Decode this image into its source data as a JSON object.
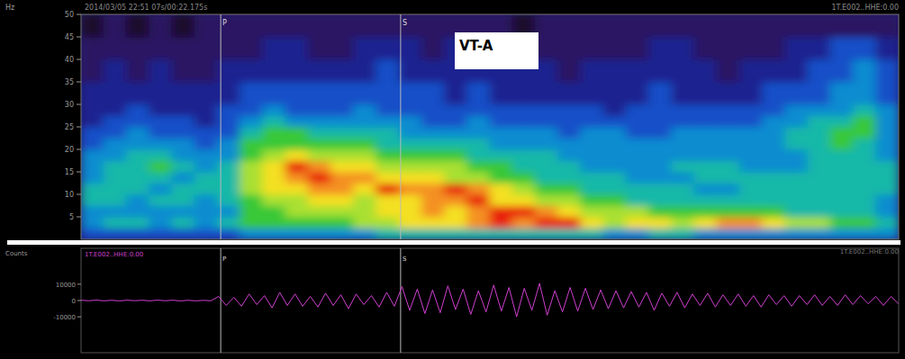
{
  "chart_data": [
    {
      "type": "heatmap",
      "title": "2014/03/05 22:51 07s/00:22.175s",
      "subtitle": "1T.E002..HHE:0.00",
      "y_label": "Hz",
      "annotation": "VT-A",
      "xlim": [
        0,
        36
      ],
      "ylim": [
        0,
        50
      ],
      "yticks": [
        5,
        10,
        15,
        20,
        25,
        30,
        35,
        40,
        45,
        50
      ],
      "tick_labels": "y",
      "y_edges": [
        0,
        2.5,
        5,
        7.5,
        10,
        12.5,
        15,
        17.5,
        20,
        22.5,
        25,
        27.5,
        30,
        35,
        40,
        45,
        50
      ],
      "zlim": [
        0,
        10
      ],
      "markers": [
        {
          "label": "P",
          "x": 6.15
        },
        {
          "label": "S",
          "x": 14.07
        }
      ],
      "cells": [
        [
          3,
          3,
          3,
          3,
          3,
          3,
          3,
          4,
          4,
          4,
          4,
          4,
          4,
          5,
          5,
          5,
          5,
          5,
          5,
          5,
          5,
          5,
          5,
          4,
          4,
          5,
          5,
          4,
          4,
          4,
          4,
          4,
          4,
          4,
          4,
          4
        ],
        [
          4,
          5,
          5,
          4,
          5,
          4,
          5,
          6,
          6,
          6,
          6,
          6,
          7,
          7,
          8,
          8,
          8,
          9,
          10,
          9,
          10,
          10,
          8,
          7,
          8,
          8,
          7,
          8,
          9,
          9,
          8,
          7,
          7,
          6,
          6,
          5
        ],
        [
          4,
          4,
          4,
          4,
          4,
          4,
          4,
          6,
          6,
          7,
          7,
          7,
          7,
          8,
          8,
          9,
          8,
          9,
          10,
          10,
          9,
          8,
          7,
          7,
          7,
          6,
          6,
          6,
          6,
          6,
          6,
          5,
          5,
          5,
          5,
          4
        ],
        [
          5,
          5,
          4,
          5,
          5,
          4,
          5,
          6,
          7,
          7,
          8,
          8,
          7,
          8,
          8,
          9,
          9,
          10,
          8,
          8,
          7,
          7,
          6,
          6,
          5,
          5,
          5,
          5,
          5,
          5,
          5,
          5,
          5,
          5,
          5,
          4
        ],
        [
          5,
          5,
          5,
          4,
          5,
          5,
          5,
          7,
          8,
          8,
          9,
          9,
          8,
          10,
          9,
          9,
          10,
          9,
          8,
          7,
          6,
          6,
          5,
          5,
          5,
          5,
          5,
          4,
          4,
          5,
          5,
          5,
          5,
          5,
          5,
          5
        ],
        [
          4,
          5,
          5,
          5,
          4,
          5,
          5,
          7,
          8,
          9,
          10,
          9,
          9,
          8,
          8,
          8,
          7,
          7,
          6,
          6,
          5,
          5,
          5,
          5,
          4,
          4,
          4,
          5,
          5,
          5,
          5,
          5,
          5,
          5,
          5,
          5
        ],
        [
          4,
          5,
          5,
          6,
          5,
          4,
          5,
          7,
          8,
          10,
          9,
          8,
          8,
          7,
          7,
          7,
          7,
          6,
          6,
          5,
          5,
          5,
          4,
          4,
          4,
          4,
          5,
          5,
          5,
          4,
          4,
          4,
          5,
          5,
          5,
          5
        ],
        [
          4,
          4,
          5,
          5,
          4,
          4,
          4,
          6,
          7,
          8,
          7,
          7,
          7,
          6,
          6,
          6,
          6,
          5,
          5,
          5,
          5,
          4,
          4,
          4,
          4,
          4,
          4,
          4,
          4,
          4,
          4,
          4,
          5,
          5,
          5,
          4
        ],
        [
          3,
          4,
          4,
          4,
          4,
          3,
          4,
          6,
          6,
          6,
          6,
          6,
          6,
          5,
          5,
          5,
          5,
          5,
          4,
          4,
          4,
          4,
          4,
          4,
          4,
          4,
          4,
          4,
          4,
          4,
          4,
          5,
          5,
          6,
          5,
          4
        ],
        [
          3,
          3,
          4,
          3,
          3,
          3,
          3,
          5,
          6,
          6,
          5,
          5,
          5,
          5,
          4,
          4,
          4,
          4,
          4,
          4,
          4,
          3,
          4,
          4,
          3,
          3,
          4,
          4,
          4,
          4,
          4,
          5,
          5,
          6,
          6,
          4
        ],
        [
          2,
          3,
          3,
          3,
          3,
          2,
          3,
          4,
          5,
          4,
          4,
          4,
          4,
          4,
          4,
          3,
          3,
          4,
          3,
          3,
          3,
          3,
          3,
          3,
          3,
          3,
          3,
          3,
          3,
          3,
          4,
          4,
          5,
          5,
          6,
          4
        ],
        [
          2,
          2,
          3,
          2,
          2,
          2,
          3,
          3,
          4,
          3,
          3,
          3,
          4,
          3,
          3,
          3,
          3,
          3,
          3,
          3,
          3,
          3,
          3,
          2,
          3,
          3,
          3,
          3,
          3,
          3,
          3,
          4,
          4,
          4,
          5,
          4
        ],
        [
          2,
          2,
          2,
          2,
          2,
          2,
          2,
          3,
          3,
          3,
          3,
          3,
          3,
          3,
          3,
          3,
          2,
          3,
          2,
          2,
          2,
          2,
          2,
          2,
          2,
          3,
          2,
          2,
          2,
          2,
          3,
          3,
          3,
          4,
          4,
          3
        ],
        [
          1,
          2,
          1,
          2,
          1,
          1,
          2,
          2,
          2,
          2,
          2,
          2,
          2,
          3,
          2,
          2,
          2,
          2,
          2,
          2,
          2,
          1,
          2,
          2,
          2,
          2,
          2,
          2,
          1,
          2,
          2,
          2,
          3,
          3,
          4,
          3
        ],
        [
          1,
          1,
          1,
          1,
          1,
          1,
          1,
          1,
          2,
          2,
          1,
          1,
          2,
          2,
          2,
          1,
          2,
          1,
          1,
          1,
          1,
          1,
          1,
          1,
          1,
          2,
          2,
          1,
          1,
          1,
          1,
          2,
          2,
          3,
          3,
          2
        ],
        [
          0,
          1,
          0,
          1,
          0,
          1,
          1,
          1,
          1,
          1,
          1,
          1,
          1,
          1,
          1,
          1,
          1,
          1,
          1,
          0,
          1,
          1,
          1,
          1,
          1,
          1,
          1,
          1,
          1,
          1,
          1,
          1,
          1,
          1,
          1,
          1
        ]
      ]
    },
    {
      "type": "line",
      "title": "1T.E002..HHE:0.00",
      "subtitle": "1T.E002..HHE:0.00",
      "y_label": "Counts",
      "color": "#d040d0",
      "xlim": [
        0,
        107
      ],
      "ylim": [
        -32000,
        32000
      ],
      "yticks": [
        10000,
        0,
        -10000
      ],
      "tick_labels": "y",
      "markers": [
        {
          "label": "P",
          "x": 6.15
        },
        {
          "label": "S",
          "x": 14.07
        }
      ],
      "marker_xlim": [
        0,
        36
      ],
      "values": [
        200,
        -150,
        250,
        -200,
        150,
        -250,
        200,
        -100,
        150,
        -200,
        250,
        -150,
        200,
        -250,
        150,
        -200,
        100,
        -150,
        2500,
        -3000,
        2000,
        -3500,
        4000,
        -2500,
        3000,
        -4500,
        5000,
        -3000,
        4000,
        -3500,
        2500,
        -4000,
        4500,
        -3000,
        3500,
        -5000,
        4000,
        -2500,
        3000,
        -4000,
        5000,
        -3500,
        8500,
        -6000,
        7000,
        -8000,
        6500,
        -7500,
        9000,
        -5500,
        7000,
        -8500,
        6000,
        -7000,
        9500,
        -6500,
        8000,
        -10000,
        7500,
        -6000,
        10500,
        -9000,
        6000,
        -7000,
        8000,
        -6500,
        7500,
        -5500,
        6500,
        -5000,
        6000,
        -4500,
        5500,
        -4000,
        5000,
        -6000,
        4500,
        -3500,
        5000,
        -4500,
        4000,
        -3000,
        4500,
        -4000,
        3500,
        -3000,
        4000,
        -3500,
        3000,
        -4000,
        3500,
        -2500,
        3000,
        -3500,
        3000,
        -2500,
        3500,
        -3000,
        2500,
        -3000,
        3500,
        -2500,
        3000,
        -2000,
        2500,
        -3000,
        2500,
        -2000
      ]
    }
  ]
}
